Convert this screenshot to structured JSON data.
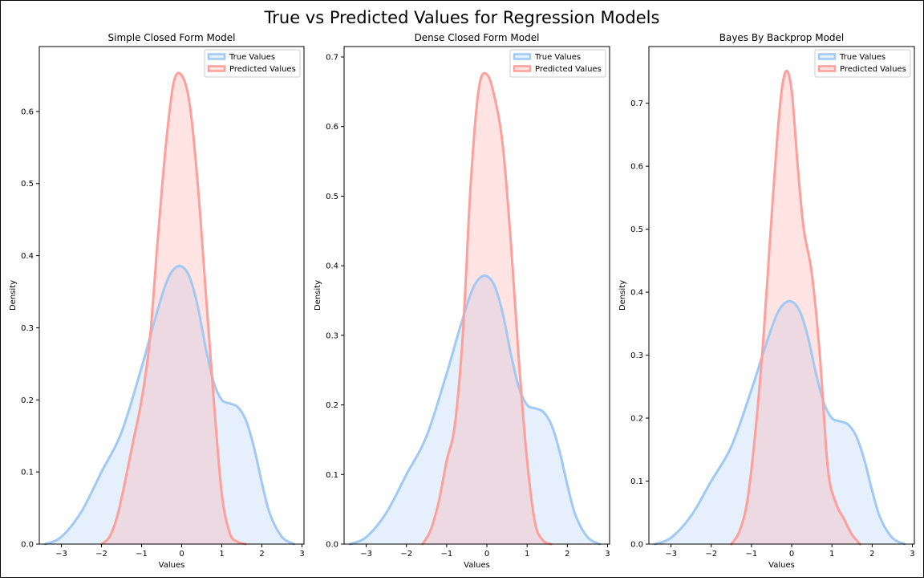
{
  "figure": {
    "title": "True vs Predicted Values for Regression Models",
    "colors": {
      "true": "#a1c9f4",
      "predicted": "#ff9f9b",
      "axis": "#000000"
    }
  },
  "chart_data": [
    {
      "type": "area",
      "title": "Simple Closed Form Model",
      "xlabel": "Values",
      "ylabel": "Density",
      "xlim": [
        -3.55,
        3.05
      ],
      "ylim": [
        0,
        0.69
      ],
      "xticks": [
        -3,
        -2,
        -1,
        0,
        1,
        2,
        3
      ],
      "yticks": [
        0.0,
        0.1,
        0.2,
        0.3,
        0.4,
        0.5,
        0.6
      ],
      "legend": {
        "position": "top-right",
        "entries": [
          "True Values",
          "Predicted Values"
        ]
      },
      "series": [
        {
          "name": "True Values",
          "x": [
            -3.4,
            -3.0,
            -2.5,
            -2.0,
            -1.5,
            -1.0,
            -0.7,
            -0.4,
            -0.2,
            0.0,
            0.2,
            0.4,
            0.6,
            0.8,
            1.0,
            1.2,
            1.4,
            1.6,
            1.8,
            2.0,
            2.2,
            2.5,
            2.8
          ],
          "y": [
            0.0,
            0.01,
            0.045,
            0.1,
            0.155,
            0.245,
            0.305,
            0.36,
            0.381,
            0.385,
            0.37,
            0.33,
            0.272,
            0.224,
            0.2,
            0.195,
            0.19,
            0.172,
            0.135,
            0.085,
            0.042,
            0.01,
            0.0
          ]
        },
        {
          "name": "Predicted Values",
          "x": [
            -2.0,
            -1.8,
            -1.6,
            -1.4,
            -1.2,
            -1.0,
            -0.8,
            -0.6,
            -0.4,
            -0.2,
            0.0,
            0.2,
            0.4,
            0.6,
            0.8,
            1.0,
            1.2,
            1.4,
            1.6
          ],
          "y": [
            0.0,
            0.01,
            0.04,
            0.09,
            0.145,
            0.2,
            0.28,
            0.42,
            0.55,
            0.64,
            0.65,
            0.61,
            0.5,
            0.35,
            0.2,
            0.07,
            0.015,
            0.003,
            0.0
          ]
        }
      ]
    },
    {
      "type": "area",
      "title": "Dense Closed Form Model",
      "xlabel": "Values",
      "ylabel": "Density",
      "xlim": [
        -3.55,
        3.05
      ],
      "ylim": [
        0,
        0.715
      ],
      "xticks": [
        -3,
        -2,
        -1,
        0,
        1,
        2,
        3
      ],
      "yticks": [
        0.0,
        0.1,
        0.2,
        0.3,
        0.4,
        0.5,
        0.6,
        0.7
      ],
      "legend": {
        "position": "top-right",
        "entries": [
          "True Values",
          "Predicted Values"
        ]
      },
      "series": [
        {
          "name": "True Values",
          "x": [
            -3.4,
            -3.0,
            -2.5,
            -2.0,
            -1.5,
            -1.0,
            -0.7,
            -0.4,
            -0.2,
            0.0,
            0.2,
            0.4,
            0.6,
            0.8,
            1.0,
            1.2,
            1.4,
            1.6,
            1.8,
            2.0,
            2.2,
            2.5,
            2.8
          ],
          "y": [
            0.0,
            0.01,
            0.045,
            0.1,
            0.155,
            0.245,
            0.305,
            0.36,
            0.381,
            0.385,
            0.37,
            0.33,
            0.272,
            0.224,
            0.2,
            0.195,
            0.19,
            0.172,
            0.135,
            0.085,
            0.042,
            0.01,
            0.0
          ]
        },
        {
          "name": "Predicted Values",
          "x": [
            -1.6,
            -1.4,
            -1.2,
            -1.0,
            -0.8,
            -0.6,
            -0.4,
            -0.2,
            0.0,
            0.2,
            0.4,
            0.6,
            0.8,
            1.0,
            1.2,
            1.4,
            1.6
          ],
          "y": [
            0.0,
            0.02,
            0.06,
            0.12,
            0.17,
            0.3,
            0.52,
            0.655,
            0.675,
            0.64,
            0.57,
            0.43,
            0.26,
            0.12,
            0.03,
            0.005,
            0.0
          ]
        }
      ]
    },
    {
      "type": "area",
      "title": "Bayes By Backprop Model",
      "xlabel": "Values",
      "ylabel": "Density",
      "xlim": [
        -3.55,
        3.05
      ],
      "ylim": [
        0,
        0.79
      ],
      "xticks": [
        -3,
        -2,
        -1,
        0,
        1,
        2,
        3
      ],
      "yticks": [
        0.0,
        0.1,
        0.2,
        0.3,
        0.4,
        0.5,
        0.6,
        0.7
      ],
      "legend": {
        "position": "top-right",
        "entries": [
          "True Values",
          "Predicted Values"
        ]
      },
      "series": [
        {
          "name": "True Values",
          "x": [
            -3.4,
            -3.0,
            -2.5,
            -2.0,
            -1.5,
            -1.0,
            -0.7,
            -0.4,
            -0.2,
            0.0,
            0.2,
            0.4,
            0.6,
            0.8,
            1.0,
            1.2,
            1.4,
            1.6,
            1.8,
            2.0,
            2.2,
            2.5,
            2.8
          ],
          "y": [
            0.0,
            0.01,
            0.045,
            0.1,
            0.155,
            0.245,
            0.305,
            0.36,
            0.381,
            0.385,
            0.37,
            0.33,
            0.272,
            0.224,
            0.2,
            0.195,
            0.19,
            0.172,
            0.135,
            0.085,
            0.042,
            0.01,
            0.0
          ]
        },
        {
          "name": "Predicted Values",
          "x": [
            -1.5,
            -1.3,
            -1.1,
            -0.9,
            -0.7,
            -0.5,
            -0.3,
            -0.15,
            0.0,
            0.15,
            0.3,
            0.5,
            0.7,
            0.9,
            1.1,
            1.3,
            1.5,
            1.7
          ],
          "y": [
            0.0,
            0.02,
            0.07,
            0.18,
            0.33,
            0.52,
            0.69,
            0.75,
            0.72,
            0.6,
            0.5,
            0.43,
            0.3,
            0.12,
            0.065,
            0.04,
            0.015,
            0.0
          ]
        }
      ]
    }
  ]
}
